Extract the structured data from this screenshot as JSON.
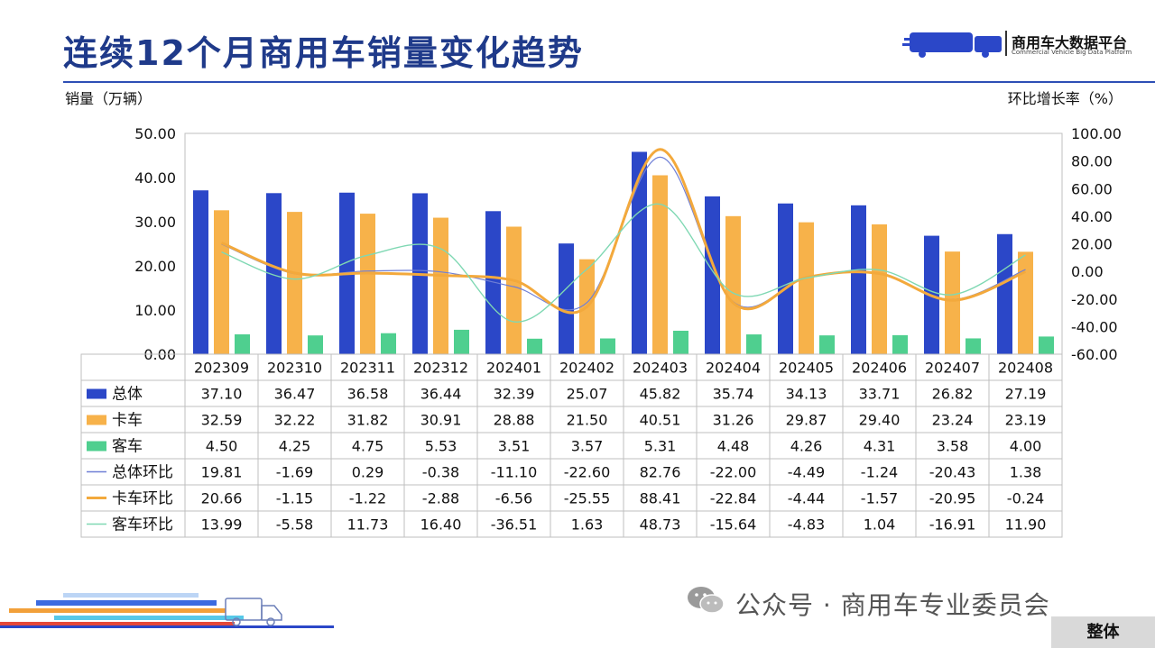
{
  "header": {
    "title": "连续12个月商用车销量变化趋势",
    "logo_name": "商用车大数据平台",
    "logo_sub": "Commercial Vehicle Big Data Platform"
  },
  "footer": {
    "wechat_account": "公众号 · 商用车专业委员会",
    "tag": "整体"
  },
  "colors": {
    "title": "#1f3a8a",
    "total": "#2b47c8",
    "truck": "#f7b24a",
    "bus": "#4fcf8f",
    "total_line": "#6f7fd6",
    "truck_line": "#f3a93c",
    "bus_line": "#7fd8b3"
  },
  "chart_data": {
    "type": "bar",
    "combo": "bar + line",
    "categories": [
      "202309",
      "202310",
      "202311",
      "202312",
      "202401",
      "202402",
      "202403",
      "202404",
      "202405",
      "202406",
      "202407",
      "202408"
    ],
    "ylabel": "销量（万辆）",
    "y2label": "环比增长率（%）",
    "ylim": [
      0,
      50
    ],
    "yticks": [
      "0.00",
      "10.00",
      "20.00",
      "30.00",
      "40.00",
      "50.00"
    ],
    "y2lim": [
      -60,
      100
    ],
    "y2ticks": [
      "-60.00",
      "-40.00",
      "-20.00",
      "0.00",
      "20.00",
      "40.00",
      "60.00",
      "80.00",
      "100.00"
    ],
    "grid": false,
    "legend": "data table below chart",
    "bar_series": [
      {
        "name": "总体",
        "values": [
          37.1,
          36.47,
          36.58,
          36.44,
          32.39,
          25.07,
          45.82,
          35.74,
          34.13,
          33.71,
          26.82,
          27.19
        ]
      },
      {
        "name": "卡车",
        "values": [
          32.59,
          32.22,
          31.82,
          30.91,
          28.88,
          21.5,
          40.51,
          31.26,
          29.87,
          29.4,
          23.24,
          23.19
        ]
      },
      {
        "name": "客车",
        "values": [
          4.5,
          4.25,
          4.75,
          5.53,
          3.51,
          3.57,
          5.31,
          4.48,
          4.26,
          4.31,
          3.58,
          4.0
        ]
      }
    ],
    "line_series": [
      {
        "name": "总体环比",
        "values": [
          19.81,
          -1.69,
          0.29,
          -0.38,
          -11.1,
          -22.6,
          82.76,
          -22.0,
          -4.49,
          -1.24,
          -20.43,
          1.38
        ]
      },
      {
        "name": "卡车环比",
        "values": [
          20.66,
          -1.15,
          -1.22,
          -2.88,
          -6.56,
          -25.55,
          88.41,
          -22.84,
          -4.44,
          -1.57,
          -20.95,
          -0.24
        ]
      },
      {
        "name": "客车环比",
        "values": [
          13.99,
          -5.58,
          11.73,
          16.4,
          -36.51,
          1.63,
          48.73,
          -15.64,
          -4.83,
          1.04,
          -16.91,
          11.9
        ]
      }
    ]
  }
}
